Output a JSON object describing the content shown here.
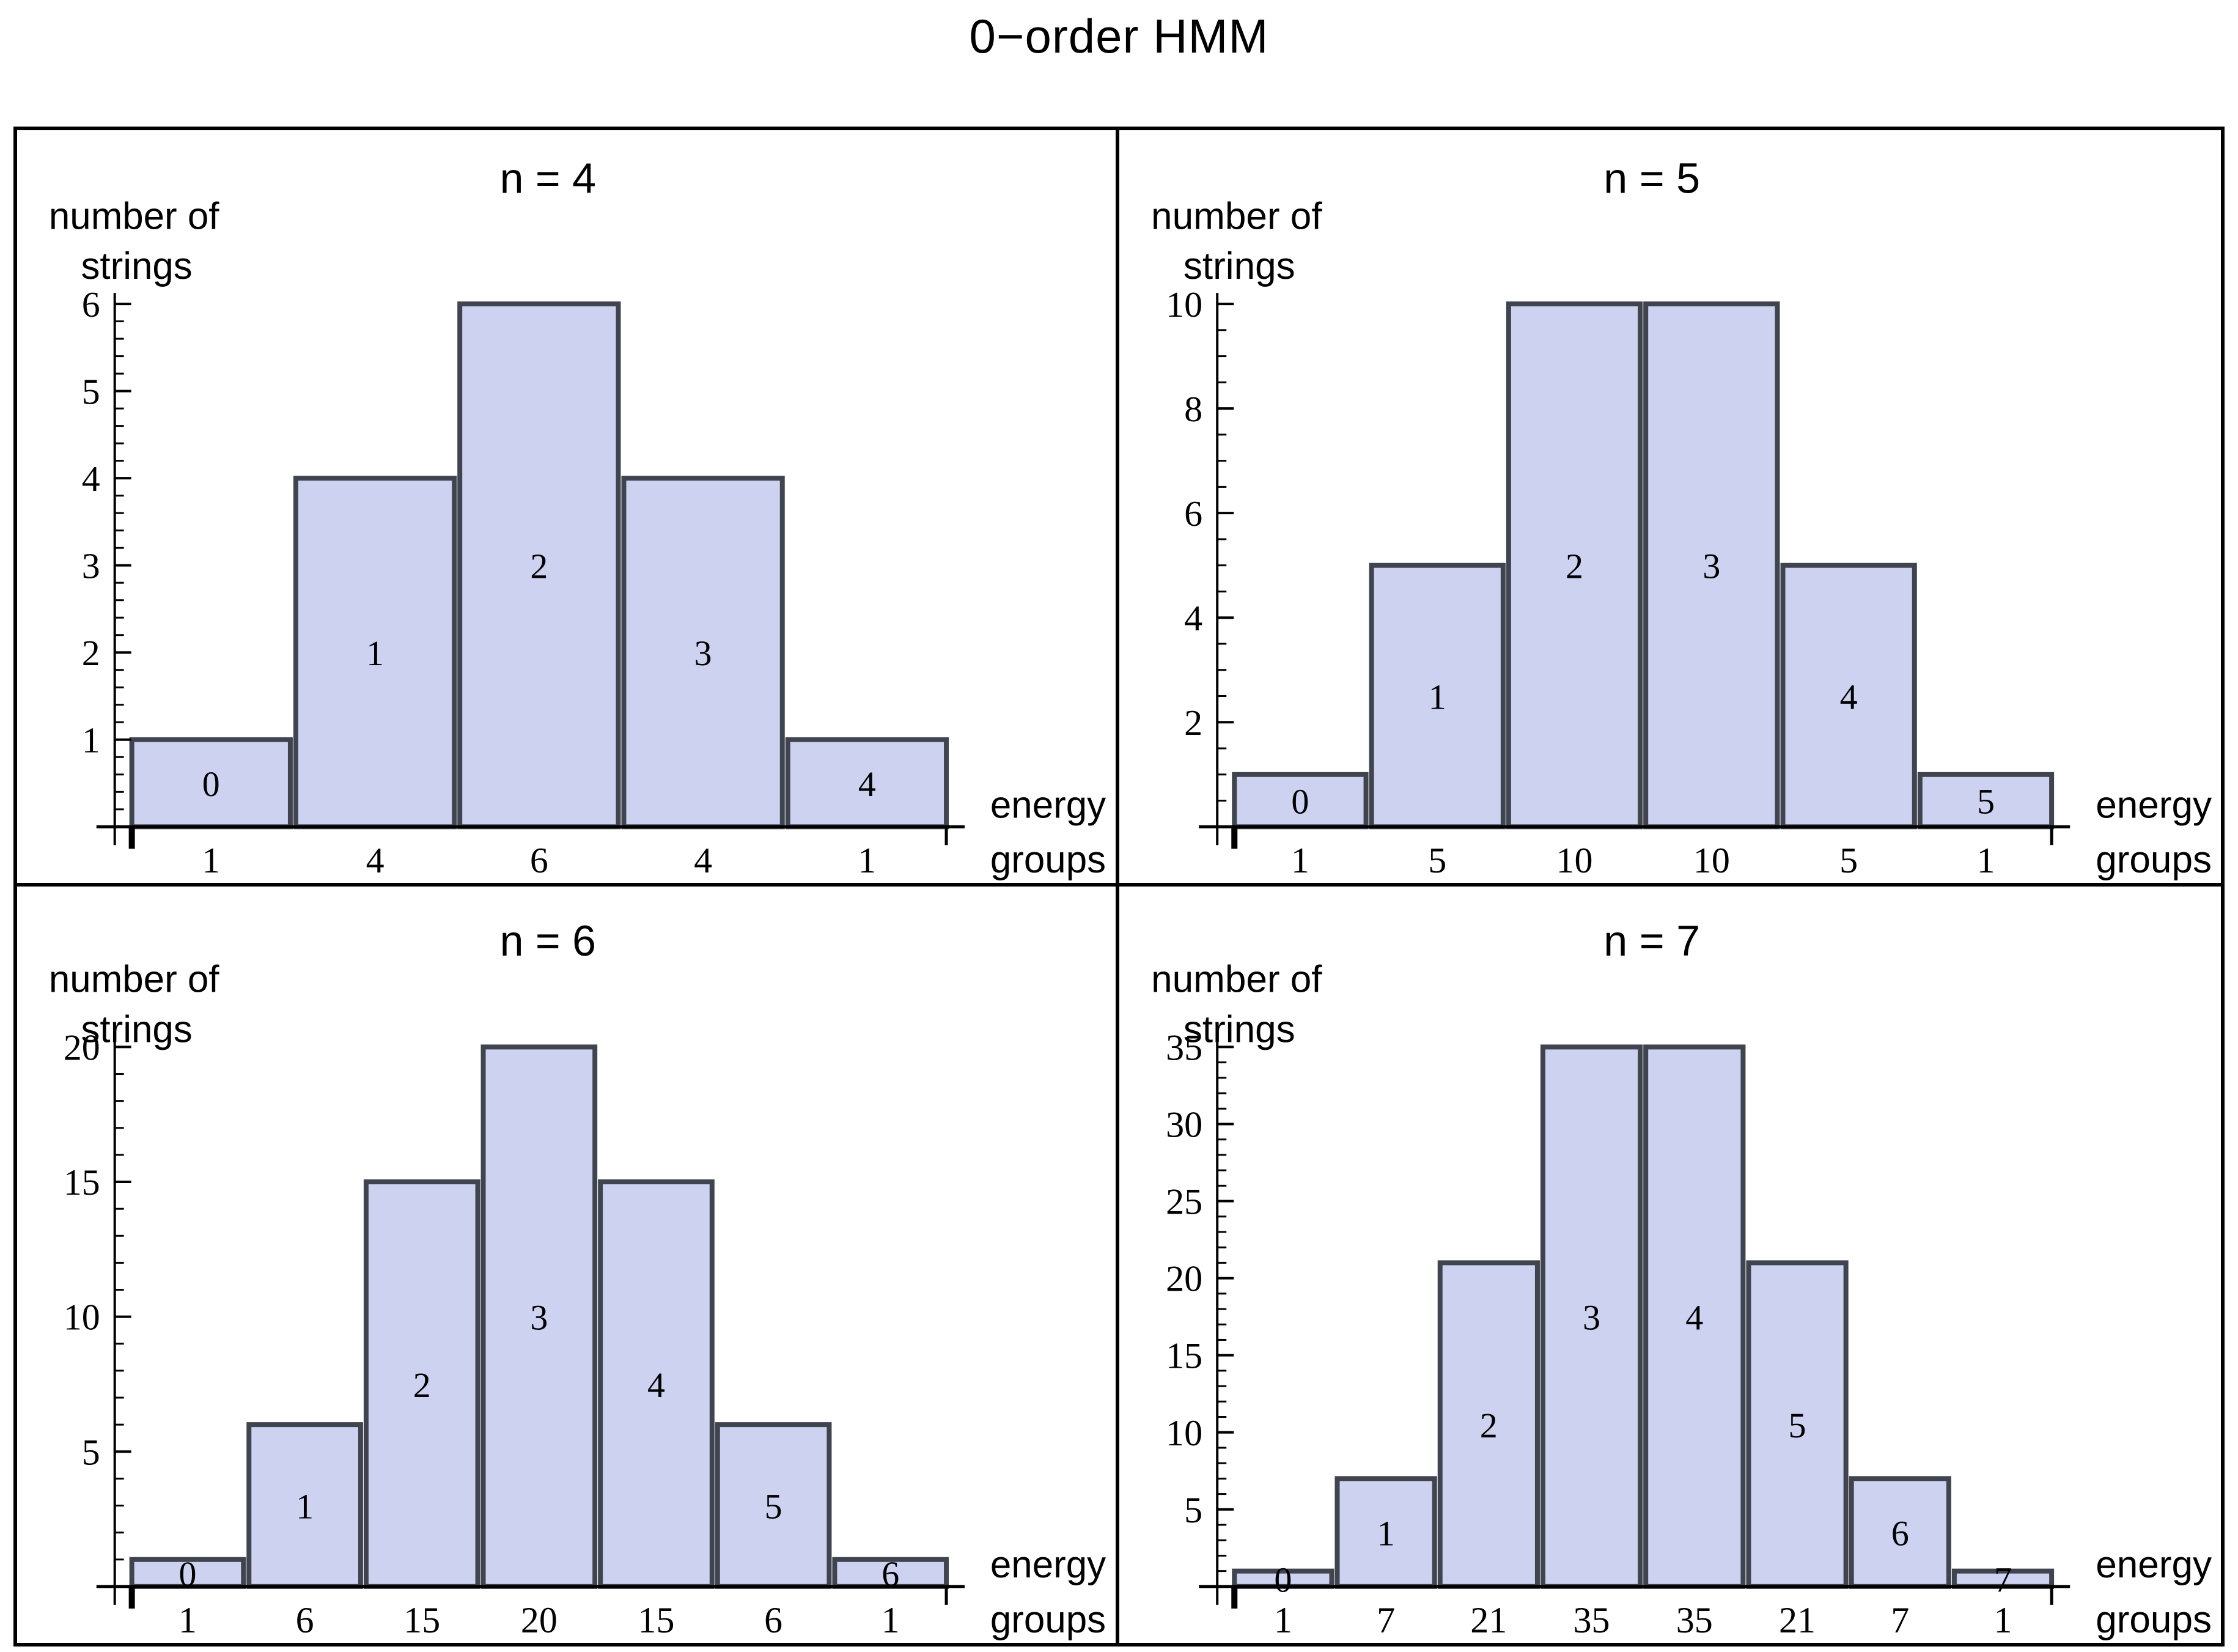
{
  "page": {
    "title": "0−order HMM"
  },
  "colors": {
    "bar_fill": "#cdd2f1",
    "bar_stroke": "#40444e",
    "axis": "#000000",
    "text": "#000000",
    "frame": "#000000",
    "background": "#ffffff"
  },
  "chart_data": [
    {
      "type": "bar",
      "title": "n = 4",
      "ylabel_line1": "number of",
      "ylabel_line2": "strings",
      "xlabel_line1": "energy",
      "xlabel_line2": "groups",
      "bar_labels": [
        "0",
        "1",
        "2",
        "3",
        "4"
      ],
      "values": [
        1,
        4,
        6,
        4,
        1
      ],
      "x_tick_labels": [
        "1",
        "4",
        "6",
        "4",
        "1"
      ],
      "y_major_ticks": [
        1,
        2,
        3,
        4,
        5,
        6
      ],
      "y_minor_step": 0.2,
      "ylim": [
        0,
        6
      ],
      "grid": false,
      "legend": null
    },
    {
      "type": "bar",
      "title": "n = 5",
      "ylabel_line1": "number of",
      "ylabel_line2": "strings",
      "xlabel_line1": "energy",
      "xlabel_line2": "groups",
      "bar_labels": [
        "0",
        "1",
        "2",
        "3",
        "4",
        "5"
      ],
      "values": [
        1,
        5,
        10,
        10,
        5,
        1
      ],
      "x_tick_labels": [
        "1",
        "5",
        "10",
        "10",
        "5",
        "1"
      ],
      "y_major_ticks": [
        2,
        4,
        6,
        8,
        10
      ],
      "y_minor_step": 0.5,
      "ylim": [
        0,
        10
      ],
      "grid": false,
      "legend": null
    },
    {
      "type": "bar",
      "title": "n = 6",
      "ylabel_line1": "number of",
      "ylabel_line2": "strings",
      "xlabel_line1": "energy",
      "xlabel_line2": "groups",
      "bar_labels": [
        "0",
        "1",
        "2",
        "3",
        "4",
        "5",
        "6"
      ],
      "values": [
        1,
        6,
        15,
        20,
        15,
        6,
        1
      ],
      "x_tick_labels": [
        "1",
        "6",
        "15",
        "20",
        "15",
        "6",
        "1"
      ],
      "y_major_ticks": [
        5,
        10,
        15,
        20
      ],
      "y_minor_step": 1,
      "ylim": [
        0,
        20
      ],
      "grid": false,
      "legend": null
    },
    {
      "type": "bar",
      "title": "n = 7",
      "ylabel_line1": "number of",
      "ylabel_line2": "strings",
      "xlabel_line1": "energy",
      "xlabel_line2": "groups",
      "bar_labels": [
        "0",
        "1",
        "2",
        "3",
        "4",
        "5",
        "6",
        "7"
      ],
      "values": [
        1,
        7,
        21,
        35,
        35,
        21,
        7,
        1
      ],
      "x_tick_labels": [
        "1",
        "7",
        "21",
        "35",
        "35",
        "21",
        "7",
        "1"
      ],
      "y_major_ticks": [
        5,
        10,
        15,
        20,
        25,
        30,
        35
      ],
      "y_minor_step": 1,
      "ylim": [
        0,
        35
      ],
      "grid": false,
      "legend": null
    }
  ]
}
